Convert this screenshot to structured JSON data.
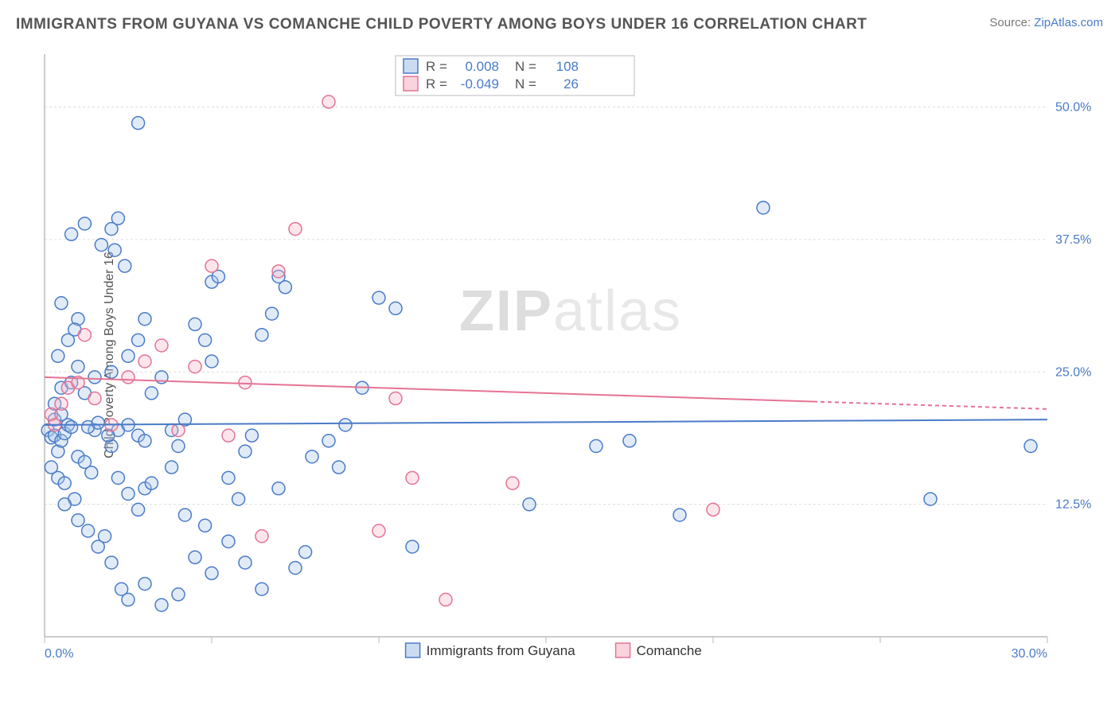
{
  "title": "IMMIGRANTS FROM GUYANA VS COMANCHE CHILD POVERTY AMONG BOYS UNDER 16 CORRELATION CHART",
  "source_prefix": "Source: ",
  "source_link": "ZipAtlas.com",
  "y_axis_label": "Child Poverty Among Boys Under 16",
  "watermark": {
    "bold": "ZIP",
    "light": "atlas"
  },
  "chart": {
    "type": "scatter",
    "background_color": "#ffffff",
    "grid_color": "#dddddd",
    "axis_color": "#bbbbbb",
    "tick_label_color": "#4a7bc8",
    "tick_fontsize": 16,
    "xlim": [
      0,
      30
    ],
    "ylim": [
      0,
      55
    ],
    "x_ticks": [
      0,
      5,
      10,
      15,
      20,
      25,
      30
    ],
    "x_tick_labels": [
      "0.0%",
      "",
      "",
      "",
      "",
      "",
      "30.0%"
    ],
    "y_ticks": [
      12.5,
      25.0,
      37.5,
      50.0
    ],
    "y_tick_labels": [
      "12.5%",
      "25.0%",
      "37.5%",
      "50.0%"
    ],
    "marker_radius": 8,
    "marker_stroke_width": 1.5,
    "marker_fill_opacity": 0.35,
    "series": [
      {
        "name": "Immigrants from Guyana",
        "color_stroke": "#4a7bc8",
        "color_fill": "#a8c5e8",
        "R": "0.008",
        "N": "108",
        "trend": {
          "x1": 0,
          "y1": 20.0,
          "x2": 30,
          "y2": 20.5,
          "solid_until_x": 30
        },
        "points": [
          [
            0.1,
            19.5
          ],
          [
            0.2,
            18.8
          ],
          [
            0.3,
            19.0
          ],
          [
            0.4,
            17.5
          ],
          [
            0.5,
            18.5
          ],
          [
            0.6,
            19.2
          ],
          [
            0.3,
            20.5
          ],
          [
            0.5,
            21.0
          ],
          [
            0.7,
            20.0
          ],
          [
            0.8,
            19.8
          ],
          [
            0.2,
            16.0
          ],
          [
            0.4,
            15.0
          ],
          [
            0.6,
            14.5
          ],
          [
            0.9,
            13.0
          ],
          [
            1.0,
            17.0
          ],
          [
            1.2,
            16.5
          ],
          [
            1.4,
            15.5
          ],
          [
            1.5,
            19.5
          ],
          [
            0.3,
            22.0
          ],
          [
            0.5,
            23.5
          ],
          [
            0.8,
            24.0
          ],
          [
            1.0,
            25.5
          ],
          [
            1.2,
            23.0
          ],
          [
            1.5,
            24.5
          ],
          [
            0.4,
            26.5
          ],
          [
            0.7,
            28.0
          ],
          [
            1.0,
            30.0
          ],
          [
            0.5,
            31.5
          ],
          [
            0.8,
            38.0
          ],
          [
            1.2,
            39.0
          ],
          [
            2.0,
            38.5
          ],
          [
            2.2,
            39.5
          ],
          [
            2.0,
            18.0
          ],
          [
            2.2,
            19.5
          ],
          [
            2.5,
            20.0
          ],
          [
            2.8,
            19.0
          ],
          [
            3.0,
            18.5
          ],
          [
            2.2,
            15.0
          ],
          [
            2.5,
            13.5
          ],
          [
            2.8,
            12.0
          ],
          [
            3.0,
            14.0
          ],
          [
            2.0,
            25.0
          ],
          [
            2.5,
            26.5
          ],
          [
            2.8,
            28.0
          ],
          [
            3.0,
            30.0
          ],
          [
            3.2,
            23.0
          ],
          [
            3.5,
            24.5
          ],
          [
            3.8,
            19.5
          ],
          [
            4.0,
            18.0
          ],
          [
            4.2,
            20.5
          ],
          [
            4.5,
            29.5
          ],
          [
            4.8,
            28.0
          ],
          [
            5.0,
            26.0
          ],
          [
            5.0,
            33.5
          ],
          [
            5.2,
            34.0
          ],
          [
            5.5,
            15.0
          ],
          [
            5.8,
            13.0
          ],
          [
            6.0,
            17.5
          ],
          [
            6.2,
            19.0
          ],
          [
            6.5,
            28.5
          ],
          [
            6.8,
            30.5
          ],
          [
            7.0,
            34.0
          ],
          [
            7.2,
            33.0
          ],
          [
            7.5,
            6.5
          ],
          [
            7.8,
            8.0
          ],
          [
            8.0,
            17.0
          ],
          [
            8.5,
            18.5
          ],
          [
            8.8,
            16.0
          ],
          [
            9.0,
            20.0
          ],
          [
            9.5,
            23.5
          ],
          [
            10.0,
            32.0
          ],
          [
            10.5,
            31.0
          ],
          [
            2.8,
            48.5
          ],
          [
            1.0,
            11.0
          ],
          [
            1.3,
            10.0
          ],
          [
            1.6,
            8.5
          ],
          [
            1.8,
            9.5
          ],
          [
            2.0,
            7.0
          ],
          [
            2.3,
            4.5
          ],
          [
            2.5,
            3.5
          ],
          [
            3.0,
            5.0
          ],
          [
            3.5,
            3.0
          ],
          [
            4.0,
            4.0
          ],
          [
            4.5,
            7.5
          ],
          [
            5.0,
            6.0
          ],
          [
            5.5,
            9.0
          ],
          [
            6.0,
            7.0
          ],
          [
            6.5,
            4.5
          ],
          [
            7.0,
            14.0
          ],
          [
            3.2,
            14.5
          ],
          [
            3.8,
            16.0
          ],
          [
            4.2,
            11.5
          ],
          [
            4.8,
            10.5
          ],
          [
            11.0,
            8.5
          ],
          [
            16.5,
            18.0
          ],
          [
            14.5,
            12.5
          ],
          [
            17.5,
            18.5
          ],
          [
            19.0,
            11.5
          ],
          [
            21.5,
            40.5
          ],
          [
            26.5,
            13.0
          ],
          [
            29.5,
            18.0
          ],
          [
            1.7,
            37.0
          ],
          [
            2.1,
            36.5
          ],
          [
            2.4,
            35.0
          ],
          [
            0.9,
            29.0
          ],
          [
            1.3,
            19.8
          ],
          [
            1.6,
            20.2
          ],
          [
            1.9,
            19.0
          ],
          [
            0.6,
            12.5
          ]
        ]
      },
      {
        "name": "Comanche",
        "color_stroke": "#e57394",
        "color_fill": "#f5b8c8",
        "R": "-0.049",
        "N": "26",
        "trend": {
          "x1": 0,
          "y1": 24.5,
          "x2": 30,
          "y2": 21.5,
          "solid_until_x": 23
        },
        "points": [
          [
            0.2,
            21.0
          ],
          [
            0.3,
            20.0
          ],
          [
            0.5,
            22.0
          ],
          [
            0.7,
            23.5
          ],
          [
            1.0,
            24.0
          ],
          [
            1.2,
            28.5
          ],
          [
            1.5,
            22.5
          ],
          [
            2.0,
            20.0
          ],
          [
            2.5,
            24.5
          ],
          [
            3.0,
            26.0
          ],
          [
            3.5,
            27.5
          ],
          [
            4.0,
            19.5
          ],
          [
            4.5,
            25.5
          ],
          [
            5.0,
            35.0
          ],
          [
            5.5,
            19.0
          ],
          [
            6.0,
            24.0
          ],
          [
            6.5,
            9.5
          ],
          [
            7.0,
            34.5
          ],
          [
            7.5,
            38.5
          ],
          [
            8.5,
            50.5
          ],
          [
            10.0,
            10.0
          ],
          [
            10.5,
            22.5
          ],
          [
            11.0,
            15.0
          ],
          [
            14.0,
            14.5
          ],
          [
            12.0,
            3.5
          ],
          [
            20.0,
            12.0
          ]
        ]
      }
    ],
    "legend_top": {
      "box_stroke": "#bbbbbb",
      "label_color": "#555555",
      "value_color": "#4a7bc8",
      "fontsize": 17
    },
    "legend_bottom": {
      "label_color": "#333333",
      "fontsize": 17
    }
  }
}
